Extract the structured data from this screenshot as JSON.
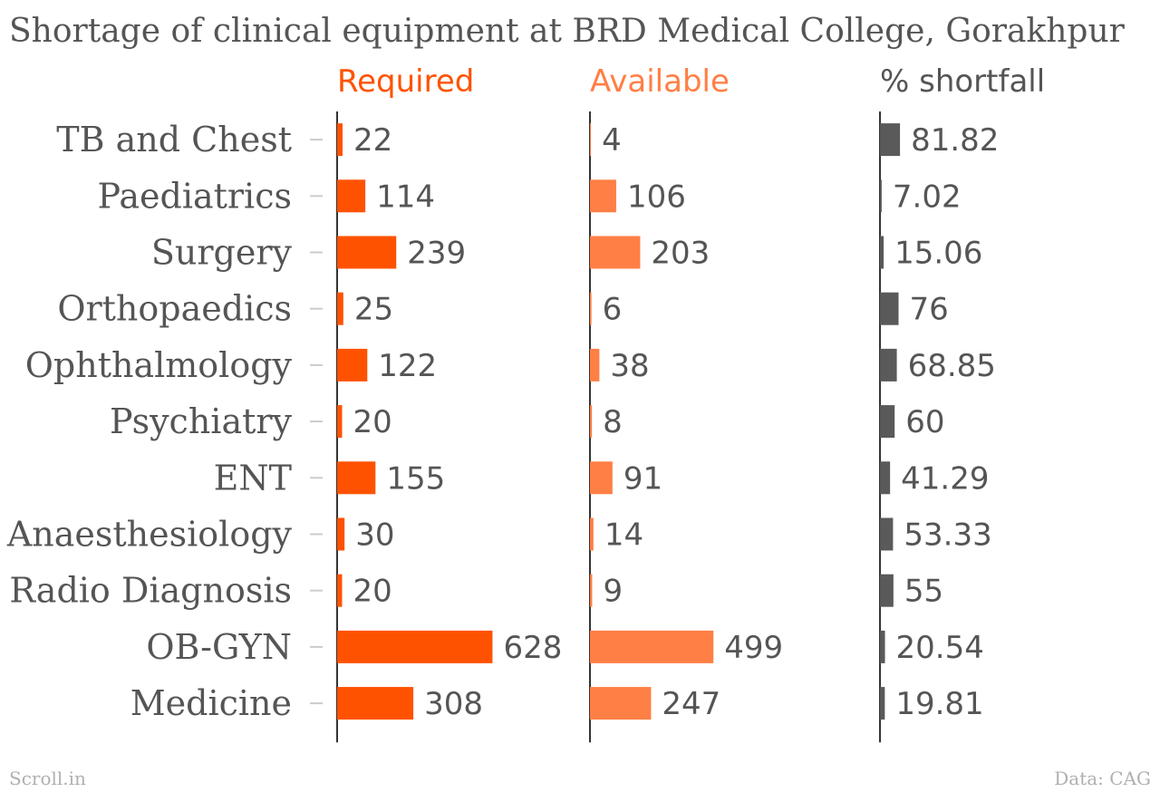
{
  "title": "Shortage of clinical equipment at BRD Medical College, Gorakhpur",
  "footer": {
    "source_left": "Scroll.in",
    "source_right": "Data: CAG"
  },
  "colors": {
    "required": "#ff5200",
    "available": "#ff7f45",
    "shortfall": "#5a5a5a",
    "text": "#555555",
    "axis": "#333333",
    "footer": "#b0b0b0"
  },
  "chart_data": {
    "type": "bar",
    "title": "Shortage of clinical equipment at BRD Medical College, Gorakhpur",
    "categories": [
      "TB and Chest",
      "Paediatrics",
      "Surgery",
      "Orthopaedics",
      "Ophthalmology",
      "Psychiatry",
      "ENT",
      "Anaesthesiology",
      "Radio Diagnosis",
      "OB-GYN",
      "Medicine"
    ],
    "series": [
      {
        "name": "Required",
        "values": [
          22,
          114,
          239,
          25,
          122,
          20,
          155,
          30,
          20,
          628,
          308
        ],
        "labels": [
          "22",
          "114",
          "239",
          "25",
          "122",
          "20",
          "155",
          "30",
          "20",
          "628",
          "308"
        ]
      },
      {
        "name": "Available",
        "values": [
          4,
          106,
          203,
          6,
          38,
          8,
          91,
          14,
          9,
          499,
          247
        ],
        "labels": [
          "4",
          "106",
          "203",
          "6",
          "38",
          "8",
          "91",
          "14",
          "9",
          "499",
          "247"
        ]
      },
      {
        "name": "% shortfall",
        "values": [
          81.82,
          7.02,
          15.06,
          76,
          68.85,
          60,
          41.29,
          53.33,
          55,
          20.54,
          19.81
        ],
        "labels": [
          "81.82",
          "7.02",
          "15.06",
          "76",
          "68.85",
          "60",
          "41.29",
          "53.33",
          "55",
          "20.54",
          "19.81"
        ]
      }
    ],
    "orientation": "horizontal",
    "panels": "small-multiples",
    "grid": false,
    "legend": "column headers above each panel"
  }
}
